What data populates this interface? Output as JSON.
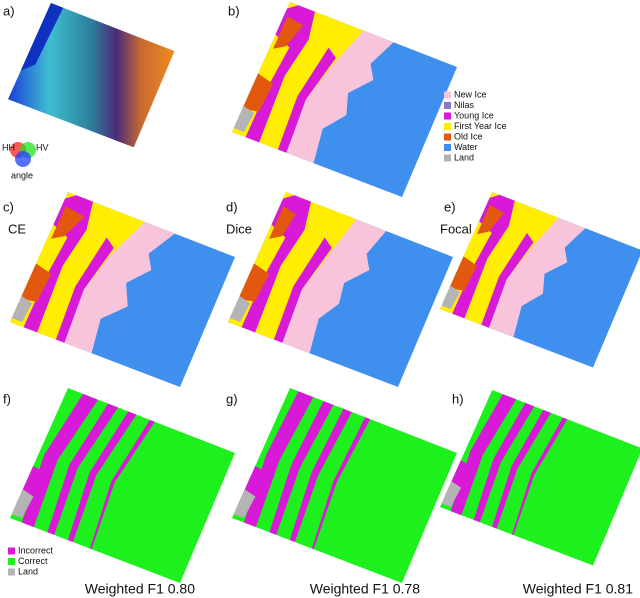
{
  "panels": [
    {
      "label": "a)",
      "kind": "sar",
      "inset": {
        "channels": [
          "HH",
          "HV",
          "angle"
        ]
      }
    },
    {
      "label": "b)",
      "kind": "classes"
    },
    {
      "label": "c)",
      "kind": "classes",
      "method": "CE"
    },
    {
      "label": "d)",
      "kind": "classes",
      "method": "Dice"
    },
    {
      "label": "e)",
      "kind": "classes",
      "method": "Focal"
    },
    {
      "label": "f)",
      "kind": "errors",
      "caption": "Weighted F1 0.80"
    },
    {
      "label": "g)",
      "kind": "errors",
      "caption": "Weighted F1 0.78"
    },
    {
      "label": "h)",
      "kind": "errors",
      "caption": "Weighted F1 0.81"
    }
  ],
  "class_legend": [
    {
      "name": "New Ice",
      "color": "#f7c4dc"
    },
    {
      "name": "Nilas",
      "color": "#8c78c8"
    },
    {
      "name": "Young Ice",
      "color": "#d81ad8"
    },
    {
      "name": "First Year Ice",
      "color": "#ffee00"
    },
    {
      "name": "Old Ice",
      "color": "#e2580e"
    },
    {
      "name": "Water",
      "color": "#3f90ee"
    },
    {
      "name": "Land",
      "color": "#b4b4b4"
    }
  ],
  "error_legend": [
    {
      "name": "Incorrect",
      "color": "#d81ad8"
    },
    {
      "name": "Correct",
      "color": "#1ef01e"
    },
    {
      "name": "Land",
      "color": "#b4b4b4"
    }
  ]
}
